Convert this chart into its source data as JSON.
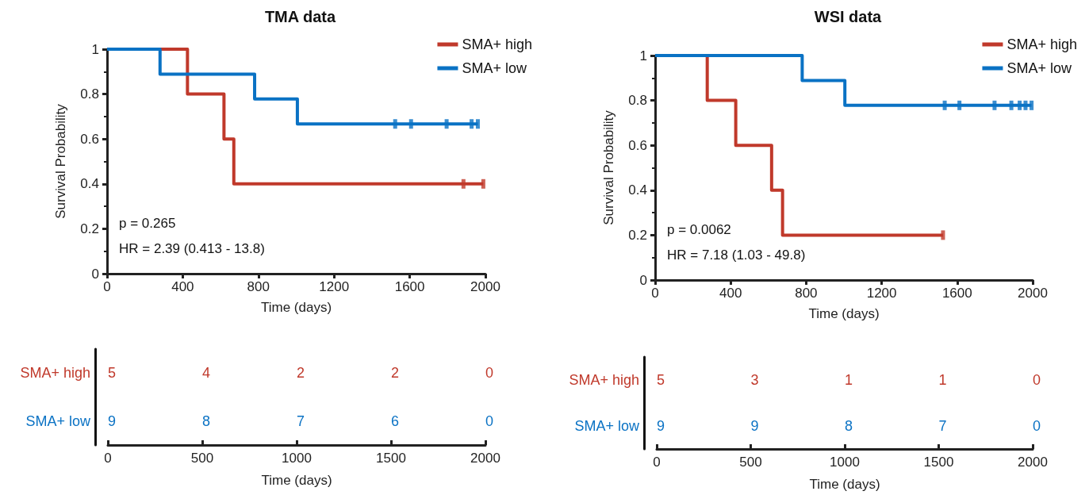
{
  "chart_data": [
    {
      "type": "step",
      "title": "TMA data",
      "xlabel": "Time (days)",
      "ylabel": "Survival Probability",
      "xlim": [
        0,
        2000
      ],
      "xticks": [
        0,
        400,
        800,
        1200,
        1600,
        2000
      ],
      "ylim": [
        0,
        1
      ],
      "yticks": [
        0,
        0.2,
        0.4,
        0.6,
        0.8,
        1
      ],
      "grid": false,
      "legend": "top right",
      "marker": "none",
      "annotations": [
        "p = 0.265",
        "HR = 2.39 (0.413 - 13.8)"
      ],
      "series": [
        {
          "name": "SMA+ high",
          "color": "#c0392b",
          "x": [
            0,
            425,
            618,
            670,
            1989
          ],
          "values": [
            1,
            0.8,
            0.6,
            0.4,
            0.4
          ]
        },
        {
          "name": "SMA+ low",
          "color": "#0a72c4",
          "x": [
            0,
            280,
            780,
            1006,
            1960
          ],
          "values": [
            1,
            0.889,
            0.778,
            0.667,
            0.667
          ]
        },
        {
          "type": "scatter",
          "marker": "square",
          "color": "#c0392b",
          "x": [
            1884,
            1989
          ],
          "values": [
            0.4,
            0.4
          ]
        },
        {
          "type": "scatter",
          "marker": "square",
          "color": "#0a72c4",
          "x": [
            1523,
            1607,
            1795,
            1927,
            1960
          ],
          "values": [
            0.667,
            0.667,
            0.667,
            0.667,
            0.667
          ]
        }
      ]
    },
    {
      "type": "step",
      "title": "WSI data",
      "xlabel": "Time (days)",
      "ylabel": "Survival Probability",
      "xlim": [
        0,
        2000
      ],
      "xticks": [
        0,
        400,
        800,
        1200,
        1600,
        2000
      ],
      "ylim": [
        0,
        1
      ],
      "yticks": [
        0,
        0.2,
        0.4,
        0.6,
        0.8,
        1
      ],
      "grid": false,
      "legend": "top right",
      "marker": "none",
      "annotations": [
        "p = 0.0062",
        "HR = 7.18 (1.03 - 49.8)"
      ],
      "series": [
        {
          "name": "SMA+ high",
          "color": "#c0392b",
          "x": [
            0,
            276,
            427,
            617,
            675,
            1525
          ],
          "values": [
            1,
            0.8,
            0.6,
            0.4,
            0.2,
            0.2
          ]
        },
        {
          "name": "SMA+ low",
          "color": "#0a72c4",
          "x": [
            0,
            779,
            1005,
            1994
          ],
          "values": [
            1,
            0.889,
            0.778,
            0.778
          ]
        },
        {
          "type": "scatter",
          "marker": "square",
          "color": "#c0392b",
          "x": [
            1525
          ],
          "values": [
            0.2
          ]
        },
        {
          "type": "scatter",
          "marker": "square",
          "color": "#0a72c4",
          "x": [
            1534,
            1612,
            1798,
            1887,
            1931,
            1962,
            1994
          ],
          "values": [
            0.778,
            0.778,
            0.778,
            0.778,
            0.778,
            0.778,
            0.778
          ]
        }
      ]
    },
    {
      "type": "heatmap",
      "xlabel": "Time (days)",
      "categories": [
        "0",
        "500",
        "1000",
        "1500",
        "2000"
      ],
      "y_categories": [
        "SMA+ high",
        "SMA+ low"
      ],
      "colors": [
        "#c0392b",
        "#0a72c4"
      ],
      "data_labels": true,
      "cells": [
        [
          5,
          4,
          2,
          2,
          0
        ],
        [
          9,
          8,
          7,
          6,
          0
        ]
      ]
    },
    {
      "type": "heatmap",
      "xlabel": "Time (days)",
      "categories": [
        "0",
        "500",
        "1000",
        "1500",
        "2000"
      ],
      "y_categories": [
        "SMA+ high",
        "SMA+ low"
      ],
      "colors": [
        "#c0392b",
        "#0a72c4"
      ],
      "data_labels": true,
      "cells": [
        [
          5,
          3,
          1,
          1,
          0
        ],
        [
          9,
          9,
          8,
          7,
          0
        ]
      ]
    }
  ]
}
